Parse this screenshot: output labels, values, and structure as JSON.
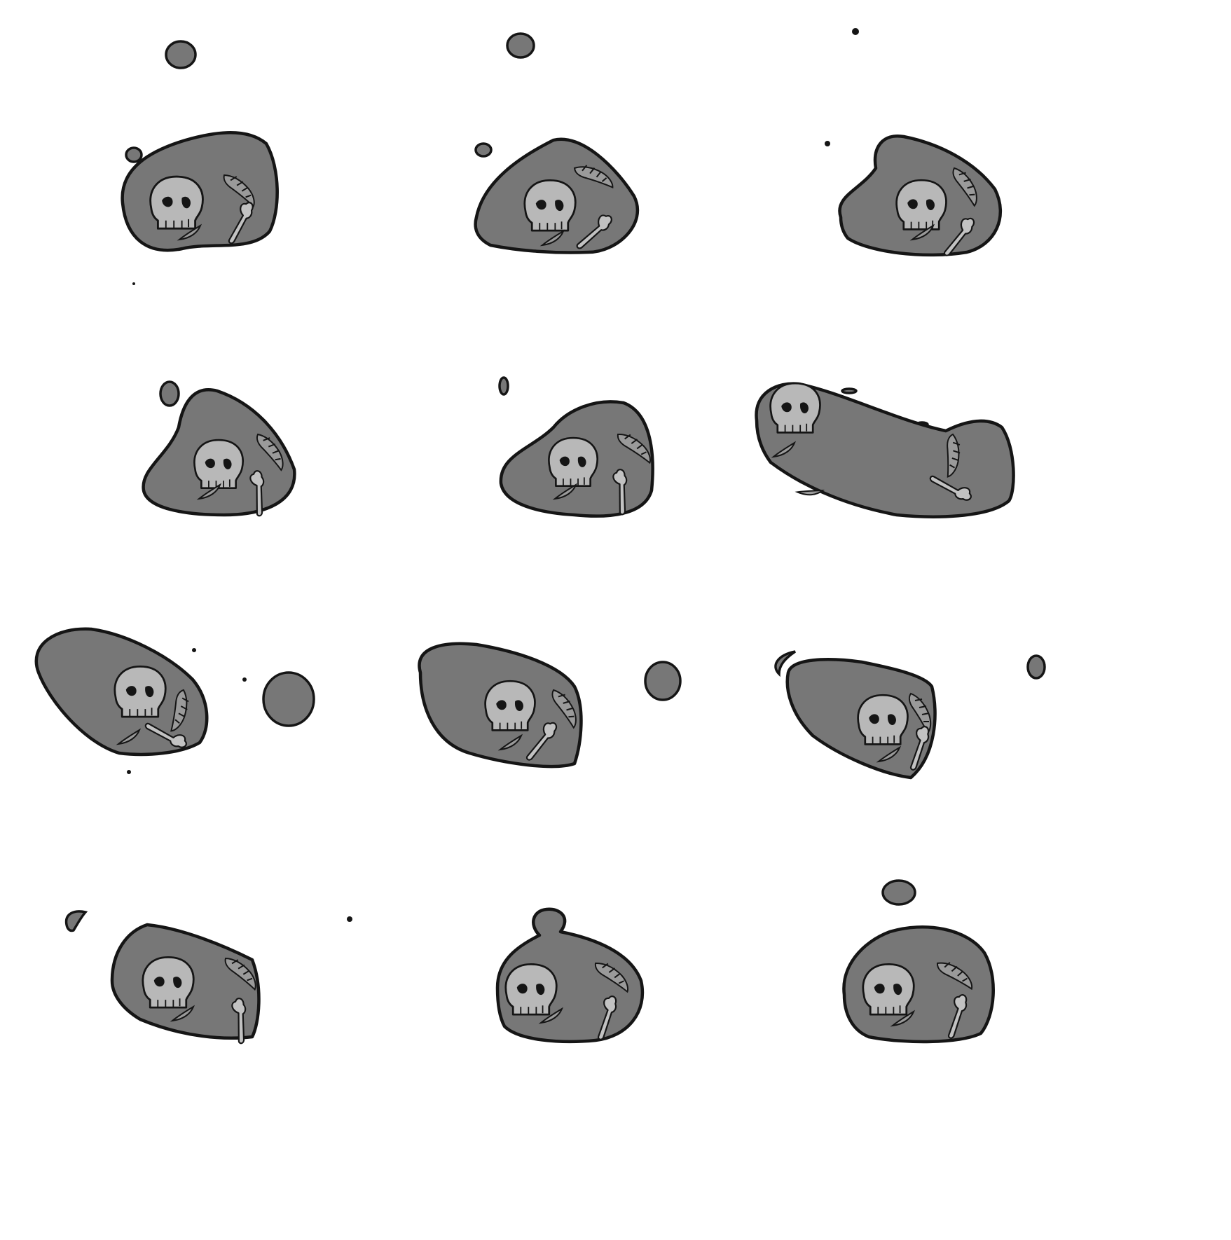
{
  "sprite_sheet": {
    "name": "",
    "colors": {
      "background": "#ffffff",
      "blob_fill": "#777777",
      "outline": "#151515",
      "bone_fill": "#b8b8b8"
    },
    "frames": [
      {
        "icon": "skull-blob-sprite",
        "pose": "idle"
      },
      {
        "icon": "skull-blob-sprite",
        "pose": "idle"
      },
      {
        "icon": "skull-blob-sprite",
        "pose": "idle"
      },
      {
        "icon": "skull-blob-sprite",
        "pose": "lean"
      },
      {
        "icon": "skull-blob-sprite",
        "pose": "lean"
      },
      {
        "icon": "skull-blob-sprite",
        "pose": "stretch"
      },
      {
        "icon": "skull-blob-sprite",
        "pose": "stretch"
      },
      {
        "icon": "skull-blob-sprite",
        "pose": "stretch"
      },
      {
        "icon": "skull-blob-sprite",
        "pose": "stretch"
      },
      {
        "icon": "skull-blob-sprite",
        "pose": "land"
      },
      {
        "icon": "skull-blob-sprite",
        "pose": "land"
      },
      {
        "icon": "skull-blob-sprite",
        "pose": "land"
      }
    ]
  }
}
